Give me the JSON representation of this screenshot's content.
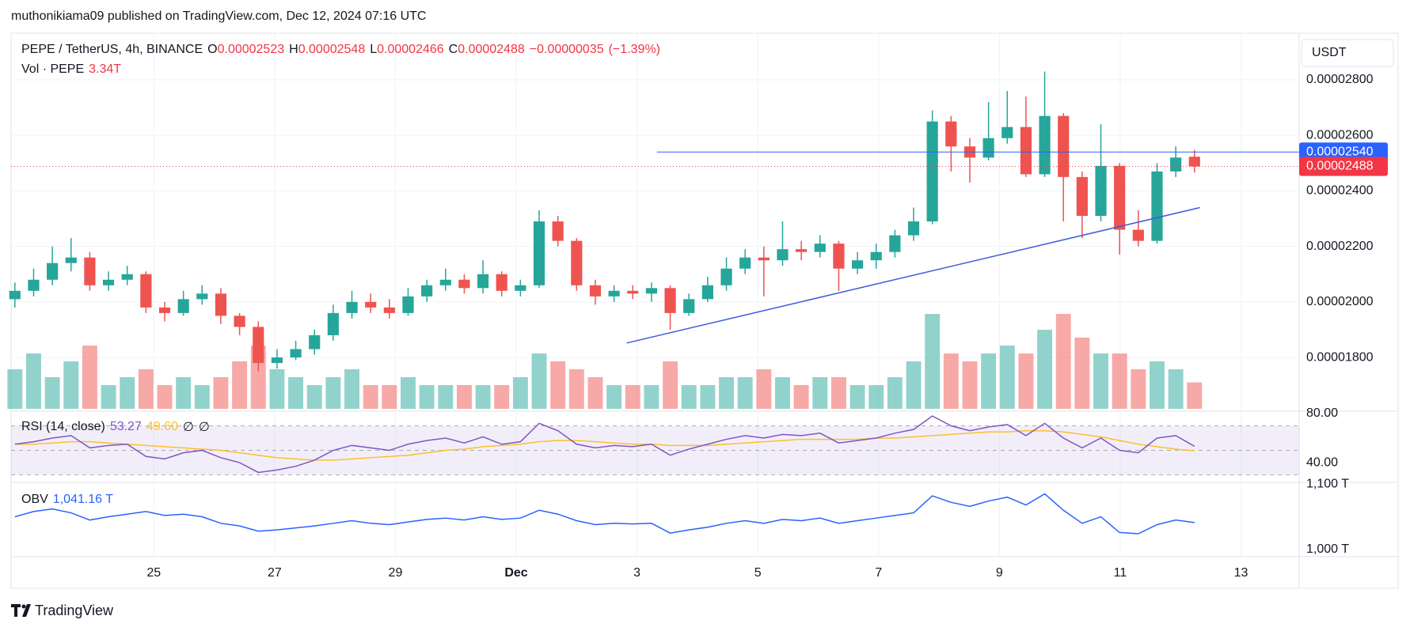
{
  "chart_data": {
    "type": "candlestick",
    "byline": "muthonikiama09 published on TradingView.com, Dec 12, 2024 07:16 UTC",
    "title": "PEPE / TetherUS, 4h, BINANCE",
    "ohlc_labels": [
      "O",
      "H",
      "L",
      "C"
    ],
    "change": {
      "value": -3.5e-07,
      "label": "−0.00000035"
    },
    "change_pct": {
      "value": -1.39,
      "label": "(−1.39%)"
    },
    "currency": "USDT",
    "brand": "TradingView",
    "colors": {
      "up": "#26a69a",
      "down": "#ef5350",
      "up_volume": "rgba(38,166,154,0.5)",
      "down_volume": "rgba(239,83,80,0.5)",
      "legend_value": "#f23645"
    },
    "x": [
      22.7,
      23.01,
      23.32,
      23.63,
      23.94,
      24.25,
      24.56,
      24.87,
      25.18,
      25.49,
      25.8,
      26.11,
      26.42,
      26.73,
      27.04,
      27.35,
      27.66,
      27.97,
      28.28,
      28.59,
      28.9,
      29.21,
      29.52,
      29.83,
      30.14,
      30.45,
      30.76,
      31.07,
      31.38,
      31.69,
      32,
      32.31,
      32.62,
      32.93,
      33.24,
      33.55,
      33.86,
      34.17,
      34.48,
      34.79,
      35.1,
      35.41,
      35.72,
      36.03,
      36.34,
      36.65,
      36.96,
      37.27,
      37.58,
      37.89,
      38.2,
      38.51,
      38.82,
      39.13,
      39.44,
      39.75,
      40.06,
      40.37,
      40.68,
      40.99,
      41.3,
      41.61,
      41.92,
      42.23
    ],
    "open": [
      2.01e-05,
      2.04e-05,
      2.08e-05,
      2.14e-05,
      2.16e-05,
      2.06e-05,
      2.08e-05,
      2.1e-05,
      1.98e-05,
      1.96e-05,
      2.01e-05,
      2.03e-05,
      1.95e-05,
      1.91e-05,
      1.78e-05,
      1.8e-05,
      1.83e-05,
      1.88e-05,
      1.96e-05,
      2e-05,
      1.98e-05,
      1.96e-05,
      2.02e-05,
      2.06e-05,
      2.08e-05,
      2.05e-05,
      2.1e-05,
      2.04e-05,
      2.06e-05,
      2.29e-05,
      2.22e-05,
      2.06e-05,
      2.02e-05,
      2.04e-05,
      2.03e-05,
      2.05e-05,
      1.96e-05,
      2.01e-05,
      2.06e-05,
      2.12e-05,
      2.16e-05,
      2.15e-05,
      2.19e-05,
      2.18e-05,
      2.21e-05,
      2.12e-05,
      2.15e-05,
      2.18e-05,
      2.24e-05,
      2.29e-05,
      2.65e-05,
      2.56e-05,
      2.52e-05,
      2.59e-05,
      2.63e-05,
      2.46e-05,
      2.67e-05,
      2.45e-05,
      2.31e-05,
      2.49e-05,
      2.26e-05,
      2.22e-05,
      2.47e-05,
      2.523e-05
    ],
    "high": [
      2.07e-05,
      2.12e-05,
      2.2e-05,
      2.23e-05,
      2.18e-05,
      2.11e-05,
      2.13e-05,
      2.11e-05,
      2e-05,
      2.04e-05,
      2.06e-05,
      2.05e-05,
      1.96e-05,
      1.93e-05,
      1.83e-05,
      1.86e-05,
      1.9e-05,
      1.99e-05,
      2.04e-05,
      2.03e-05,
      2.01e-05,
      2.05e-05,
      2.08e-05,
      2.12e-05,
      2.1e-05,
      2.15e-05,
      2.11e-05,
      2.08e-05,
      2.33e-05,
      2.31e-05,
      2.23e-05,
      2.08e-05,
      2.06e-05,
      2.06e-05,
      2.07e-05,
      2.06e-05,
      2.03e-05,
      2.09e-05,
      2.16e-05,
      2.19e-05,
      2.2e-05,
      2.29e-05,
      2.22e-05,
      2.24e-05,
      2.22e-05,
      2.18e-05,
      2.21e-05,
      2.26e-05,
      2.34e-05,
      2.69e-05,
      2.67e-05,
      2.59e-05,
      2.72e-05,
      2.76e-05,
      2.74e-05,
      2.83e-05,
      2.68e-05,
      2.47e-05,
      2.64e-05,
      2.5e-05,
      2.33e-05,
      2.5e-05,
      2.56e-05,
      2.548e-05
    ],
    "low": [
      1.98e-05,
      2.02e-05,
      2.06e-05,
      2.11e-05,
      2.04e-05,
      2.04e-05,
      2.06e-05,
      1.96e-05,
      1.93e-05,
      1.95e-05,
      1.99e-05,
      1.92e-05,
      1.88e-05,
      1.75e-05,
      1.76e-05,
      1.79e-05,
      1.81e-05,
      1.86e-05,
      1.94e-05,
      1.96e-05,
      1.94e-05,
      1.95e-05,
      2e-05,
      2.04e-05,
      2.03e-05,
      2.03e-05,
      2.02e-05,
      2.02e-05,
      2.05e-05,
      2.2e-05,
      2.04e-05,
      1.99e-05,
      2e-05,
      2.01e-05,
      2e-05,
      1.9e-05,
      1.95e-05,
      2e-05,
      2.04e-05,
      2.1e-05,
      2.02e-05,
      2.13e-05,
      2.15e-05,
      2.16e-05,
      2.04e-05,
      2.1e-05,
      2.12e-05,
      2.16e-05,
      2.22e-05,
      2.28e-05,
      2.47e-05,
      2.43e-05,
      2.51e-05,
      2.57e-05,
      2.45e-05,
      2.45e-05,
      2.29e-05,
      2.23e-05,
      2.29e-05,
      2.17e-05,
      2.2e-05,
      2.21e-05,
      2.45e-05,
      2.466e-05
    ],
    "close": [
      2.04e-05,
      2.08e-05,
      2.14e-05,
      2.16e-05,
      2.06e-05,
      2.08e-05,
      2.1e-05,
      1.98e-05,
      1.96e-05,
      2.01e-05,
      2.03e-05,
      1.95e-05,
      1.91e-05,
      1.78e-05,
      1.8e-05,
      1.83e-05,
      1.88e-05,
      1.96e-05,
      2e-05,
      1.98e-05,
      1.96e-05,
      2.02e-05,
      2.06e-05,
      2.08e-05,
      2.05e-05,
      2.1e-05,
      2.04e-05,
      2.06e-05,
      2.29e-05,
      2.22e-05,
      2.06e-05,
      2.02e-05,
      2.04e-05,
      2.03e-05,
      2.05e-05,
      1.96e-05,
      2.01e-05,
      2.06e-05,
      2.12e-05,
      2.16e-05,
      2.15e-05,
      2.19e-05,
      2.18e-05,
      2.21e-05,
      2.12e-05,
      2.15e-05,
      2.18e-05,
      2.24e-05,
      2.29e-05,
      2.65e-05,
      2.56e-05,
      2.52e-05,
      2.59e-05,
      2.63e-05,
      2.46e-05,
      2.67e-05,
      2.45e-05,
      2.31e-05,
      2.49e-05,
      2.26e-05,
      2.22e-05,
      2.47e-05,
      2.52e-05,
      2.488e-05
    ],
    "xlim": [
      22.65,
      43.95
    ],
    "xticks": [
      {
        "value": 25,
        "label": "25"
      },
      {
        "value": 27,
        "label": "27"
      },
      {
        "value": 29,
        "label": "29"
      },
      {
        "value": 31,
        "label": "Dec"
      },
      {
        "value": 33,
        "label": "3"
      },
      {
        "value": 35,
        "label": "5"
      },
      {
        "value": 37,
        "label": "7"
      },
      {
        "value": 39,
        "label": "9"
      },
      {
        "value": 41,
        "label": "11"
      },
      {
        "value": 43,
        "label": "13"
      }
    ],
    "ylim": [
      1.615e-05,
      2.968e-05
    ],
    "yticks": [
      {
        "value": 2.8e-05,
        "label": "0.00002800"
      },
      {
        "value": 2.6e-05,
        "label": "0.00002600"
      },
      {
        "value": 2.4e-05,
        "label": "0.00002400"
      },
      {
        "value": 2.2e-05,
        "label": "0.00002200"
      },
      {
        "value": 2e-05,
        "label": "0.00002000"
      },
      {
        "value": 1.8e-05,
        "label": "0.00001800"
      }
    ],
    "grid": true,
    "price_lines": [
      {
        "value": 2.54e-05,
        "label": "0.00002540",
        "color": "#2962ff",
        "x_start": 33.33,
        "dotted": false
      },
      {
        "value": 2.488e-05,
        "label": "0.00002488",
        "color": "#f23645",
        "dotted": true
      }
    ],
    "trendline": {
      "x": [
        32.83,
        42.32
      ],
      "y": [
        1.852e-05,
        2.34e-05
      ],
      "color": "#3d5bd9"
    },
    "volume": {
      "title": "Vol · PEPE",
      "legend": {
        "value": 3.34,
        "label": "3.34T"
      },
      "values": [
        5,
        7,
        4,
        6,
        8,
        3,
        4,
        5,
        3,
        4,
        3,
        4,
        6,
        8,
        5,
        4,
        3,
        4,
        5,
        3,
        3,
        4,
        3,
        3,
        3,
        3,
        3,
        4,
        7,
        6,
        5,
        4,
        3,
        3,
        3,
        6,
        3,
        3,
        4,
        4,
        5,
        4,
        3,
        4,
        4,
        3,
        3,
        4,
        6,
        12,
        7,
        6,
        7,
        8,
        7,
        10,
        12,
        9,
        7,
        7,
        5,
        6,
        5,
        3.34
      ]
    },
    "rsi": {
      "title": "RSI (14, close)",
      "color": "#7e57c2",
      "ma_color": "#fbc02d",
      "values": [
        55,
        57,
        60,
        62,
        52,
        54,
        55,
        45,
        43,
        48,
        50,
        44,
        40,
        32,
        34,
        37,
        42,
        50,
        54,
        52,
        50,
        55,
        58,
        60,
        56,
        61,
        55,
        57,
        72,
        66,
        55,
        52,
        54,
        53,
        55,
        46,
        51,
        55,
        59,
        62,
        60,
        63,
        62,
        64,
        56,
        58,
        60,
        64,
        67,
        78,
        70,
        66,
        69,
        71,
        62,
        72,
        60,
        52,
        60,
        50,
        48,
        60,
        62,
        53.27
      ],
      "ma_values": [
        55,
        55,
        56,
        57,
        57,
        56,
        55,
        54,
        53,
        52,
        51,
        50,
        48,
        46,
        44,
        43,
        42,
        42,
        43,
        44,
        45,
        46,
        48,
        50,
        51,
        53,
        54,
        55,
        57,
        58,
        58,
        57,
        56,
        55,
        55,
        54,
        54,
        54,
        55,
        56,
        57,
        58,
        59,
        59,
        59,
        59,
        60,
        60,
        61,
        62,
        63,
        64,
        65,
        65,
        66,
        66,
        65,
        63,
        61,
        58,
        55,
        53,
        51,
        49.6
      ],
      "ma_legend": {
        "value": 49.6,
        "label": "49.60"
      },
      "extra": [
        "∅",
        "∅"
      ],
      "bands": [
        70,
        50,
        30
      ],
      "ylim": [
        25.2,
        78.7
      ],
      "yticks": [
        {
          "value": 80,
          "label": "80.00"
        },
        {
          "value": 40,
          "label": "40.00"
        }
      ]
    },
    "obv": {
      "title": "OBV",
      "color": "#2962ff",
      "legend": {
        "value": 1041.16,
        "label": "1,041.16 T"
      },
      "values": [
        1050,
        1058,
        1062,
        1056,
        1045,
        1050,
        1054,
        1058,
        1052,
        1054,
        1050,
        1040,
        1036,
        1028,
        1030,
        1033,
        1036,
        1040,
        1044,
        1040,
        1038,
        1042,
        1046,
        1048,
        1045,
        1050,
        1046,
        1048,
        1060,
        1054,
        1044,
        1038,
        1040,
        1039,
        1040,
        1025,
        1030,
        1034,
        1040,
        1044,
        1040,
        1046,
        1044,
        1048,
        1040,
        1044,
        1048,
        1052,
        1056,
        1082,
        1072,
        1066,
        1074,
        1080,
        1068,
        1085,
        1060,
        1040,
        1050,
        1026,
        1024,
        1038,
        1045,
        1041.16
      ],
      "ylim": [
        989,
        1099
      ],
      "yticks": [
        {
          "value": 1100,
          "label": "1,100 T"
        },
        {
          "value": 1000,
          "label": "1,000 T"
        }
      ]
    }
  }
}
